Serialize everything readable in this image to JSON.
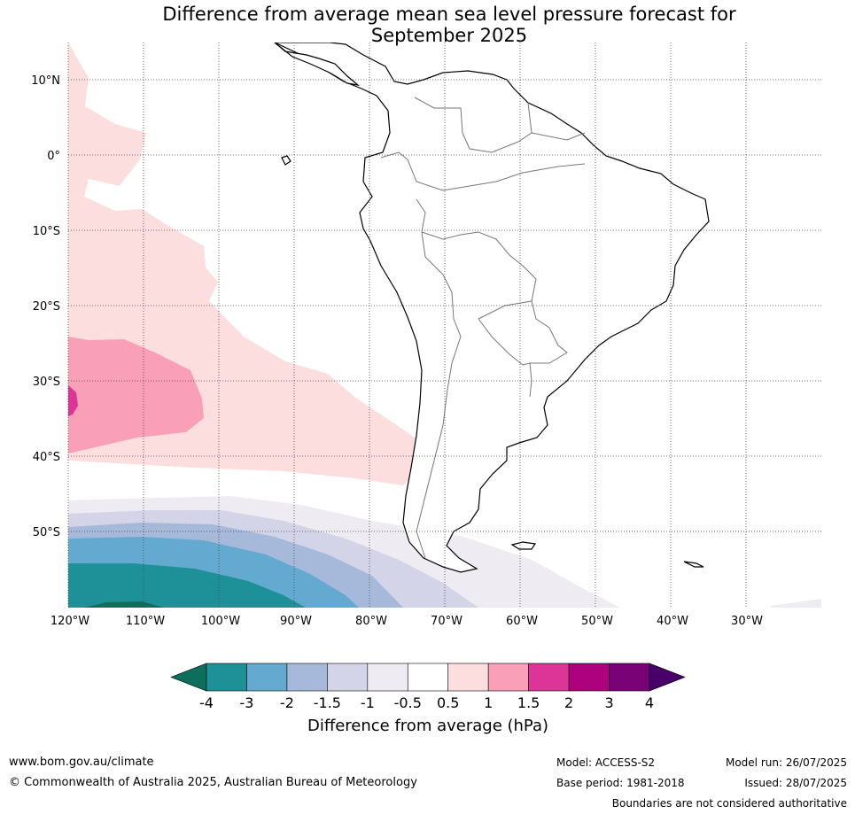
{
  "title_line1": "Difference from average mean sea level pressure forecast for",
  "title_line2": "September 2025",
  "lat_labels": [
    "10°N",
    "0°",
    "10°S",
    "20°S",
    "30°S",
    "40°S",
    "50°S"
  ],
  "lon_labels": [
    "120°W",
    "110°W",
    "100°W",
    "90°W",
    "80°W",
    "70°W",
    "60°W",
    "50°W",
    "40°W",
    "30°W"
  ],
  "colorbar": {
    "title": "Difference from average (hPa)",
    "ticks": [
      "-4",
      "-3",
      "-2",
      "-1.5",
      "-1",
      "-0.5",
      "0.5",
      "1",
      "1.5",
      "2",
      "3",
      "4"
    ],
    "colors": [
      "#0e6e5c",
      "#1e9198",
      "#64a9cf",
      "#a6b9db",
      "#d3d4e7",
      "#eeebf2",
      "#ffffff",
      "#fddede",
      "#f99fb8",
      "#dd3498",
      "#ad017e",
      "#790276",
      "#49006a"
    ]
  },
  "footer": {
    "website": "www.bom.gov.au/climate",
    "copyright": "© Commonwealth of Australia 2025, Australian Bureau of Meteorology",
    "model": "Model: ACCESS-S2",
    "base_period": "Base period: 1981-2018",
    "model_run": "Model run: 26/07/2025",
    "issued": "Issued: 28/07/2025",
    "disclaimer": "Boundaries are not considered authoritative"
  }
}
